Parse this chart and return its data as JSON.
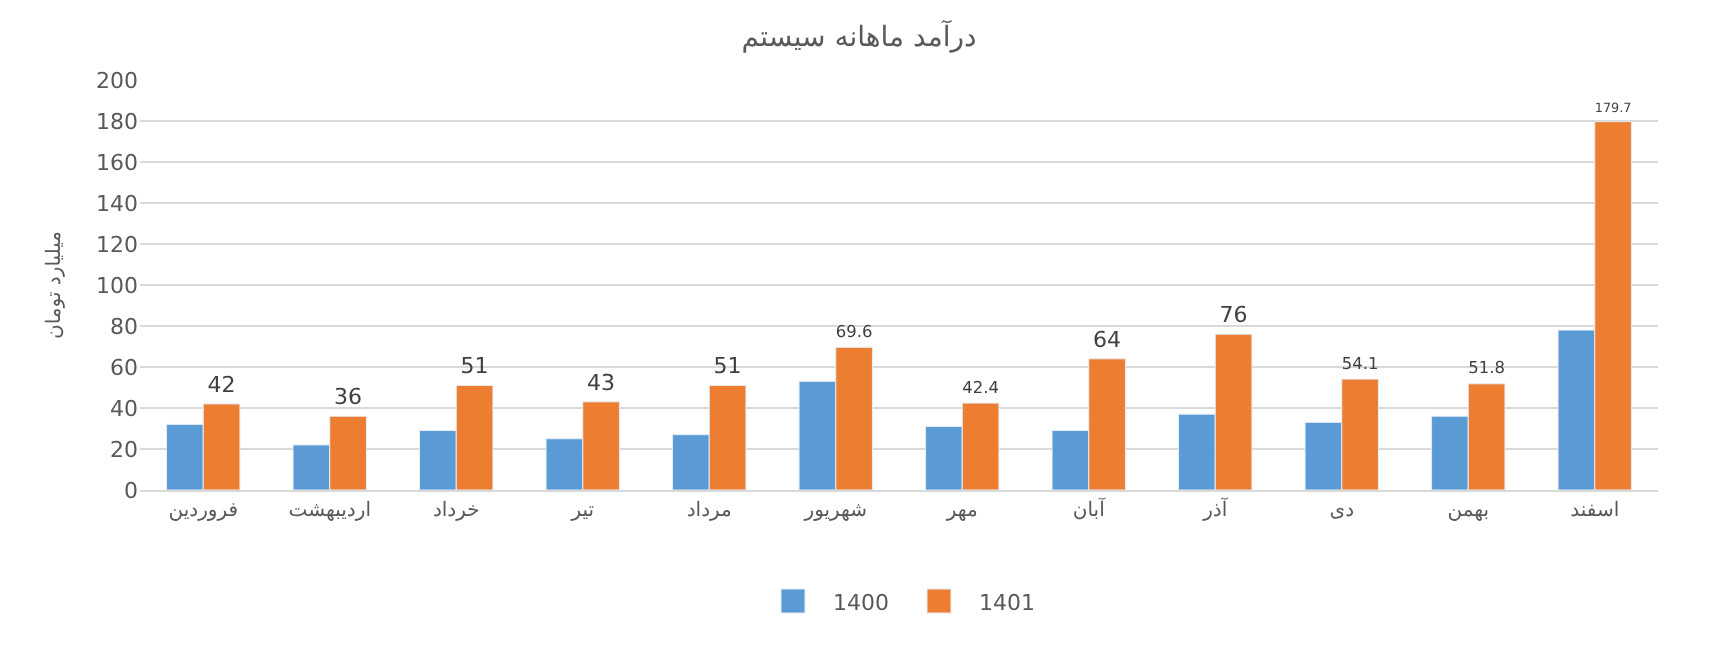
{
  "chart_data": {
    "type": "bar",
    "title": "درآمد ماهانه سیستم",
    "ylabel": "میلیارد تومان",
    "categories": [
      "فروردین",
      "اردیبهشت",
      "خرداد",
      "تیر",
      "مرداد",
      "شهریور",
      "مهر",
      "آبان",
      "آذر",
      "دی",
      "بهمن",
      "اسفند"
    ],
    "series": [
      {
        "name": "1400",
        "color": "#5b9bd5",
        "values": [
          32,
          22,
          29,
          25,
          27,
          53,
          31,
          29,
          37,
          33,
          36,
          78
        ]
      },
      {
        "name": "1401",
        "color": "#ed7d31",
        "values": [
          42,
          36,
          51,
          43,
          51,
          69.6,
          42.4,
          64,
          76,
          54.1,
          51.8,
          179.7
        ],
        "value_labels": [
          "42",
          "36",
          "51",
          "43",
          "51",
          "69.6",
          "42.4",
          "64",
          "76",
          "54.1",
          "51.8",
          "179.7"
        ]
      }
    ],
    "ylim": [
      0,
      200
    ],
    "yticks": [
      0,
      20,
      40,
      60,
      80,
      100,
      120,
      140,
      160,
      180,
      200
    ],
    "grid": "y",
    "legend": "bottom"
  }
}
